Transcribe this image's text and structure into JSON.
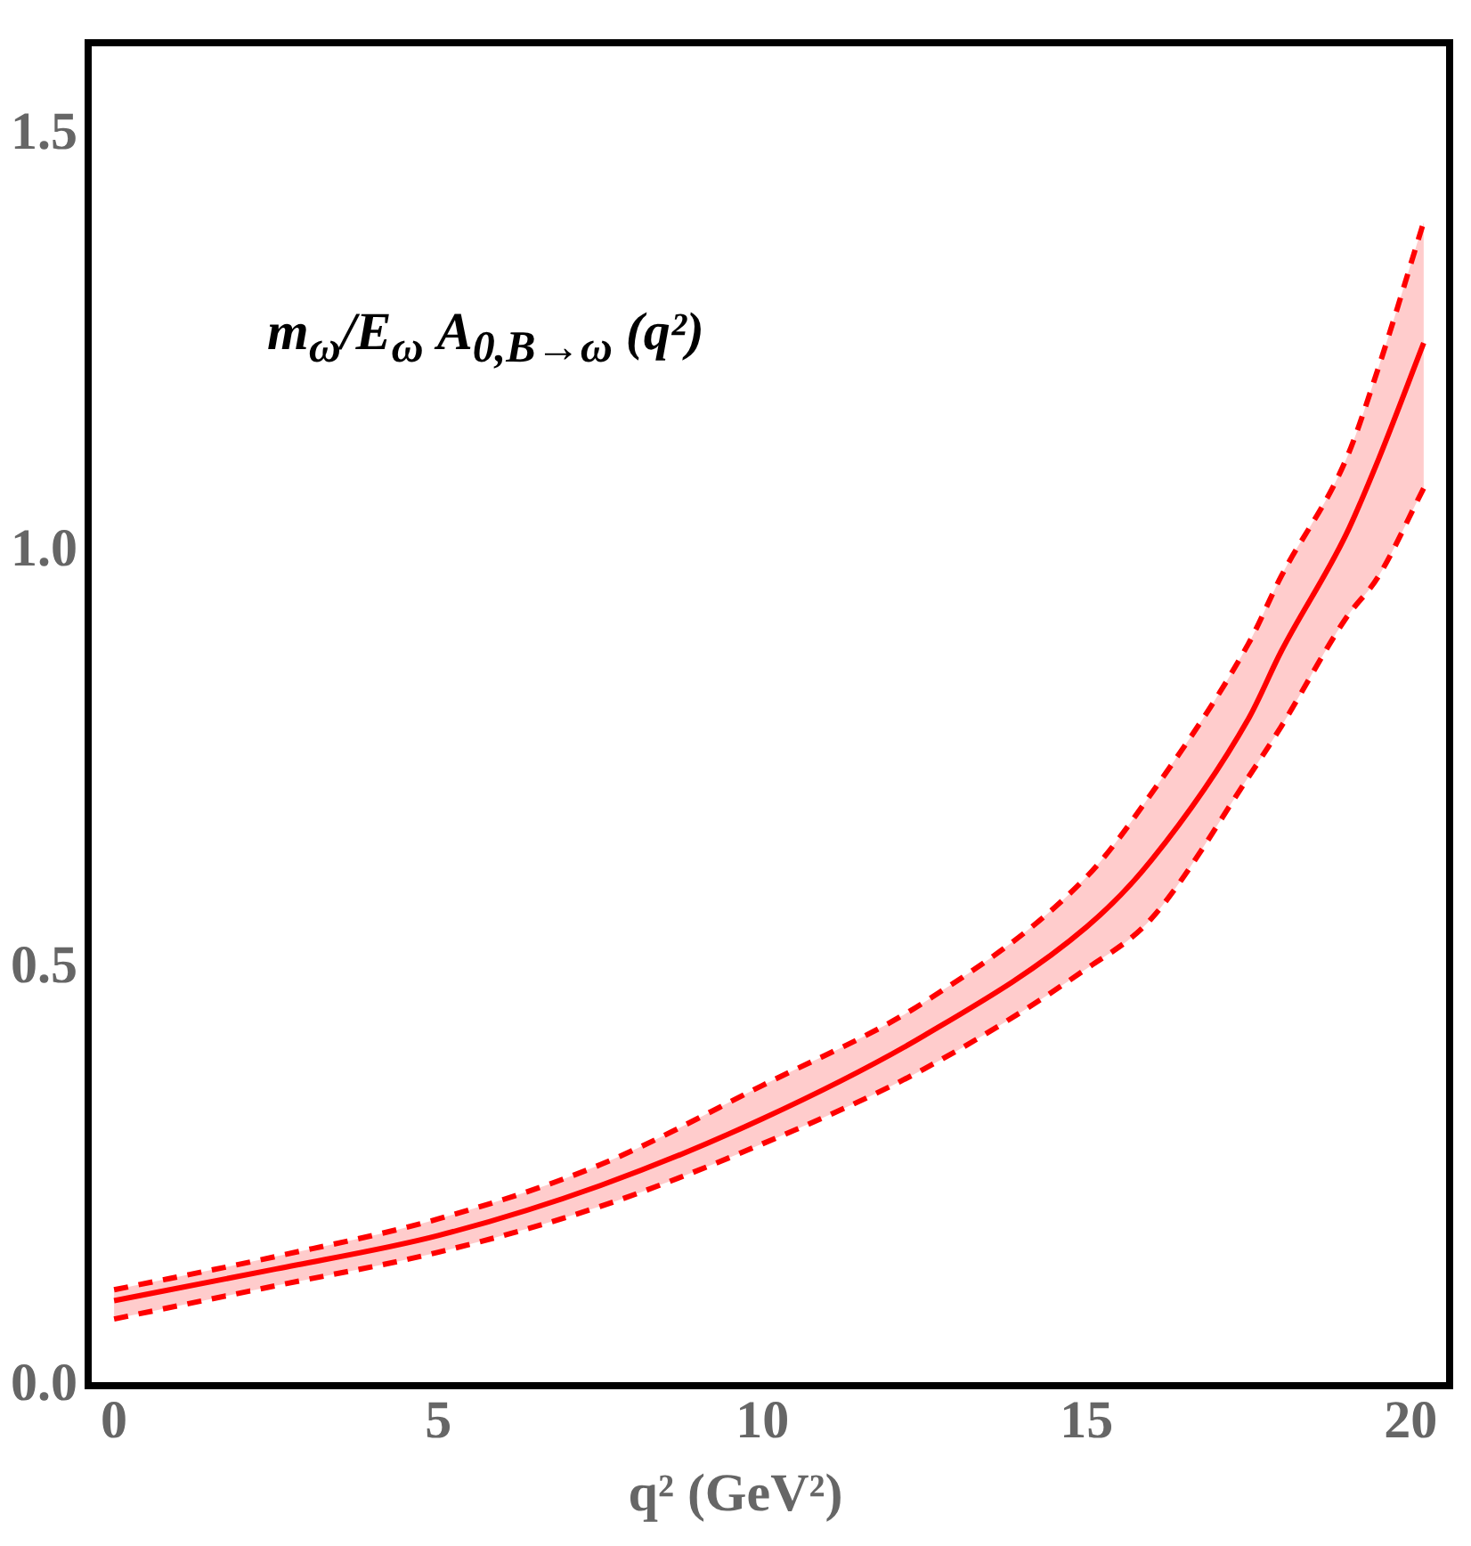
{
  "chart_data": {
    "type": "line",
    "xlabel": "q² (GeV²)",
    "annotations": [
      "m$_{ω}$/E$_{ω}$ A$_{0,B→ω}$ (q²)"
    ],
    "x": [
      0,
      2.5,
      5,
      7.5,
      10,
      12.5,
      15,
      16,
      17.5,
      18,
      19,
      19.5,
      20.2
    ],
    "series": [
      {
        "color": "#ff0000",
        "values": [
          0.102,
          0.14,
          0.18,
          0.24,
          0.32,
          0.42,
          0.55,
          0.63,
          0.8,
          0.88,
          1.02,
          1.11,
          1.25
        ],
        "lower": [
          0.08,
          0.12,
          0.16,
          0.215,
          0.29,
          0.38,
          0.5,
          0.56,
          0.73,
          0.79,
          0.92,
          0.97,
          1.076
        ],
        "upper": [
          0.115,
          0.155,
          0.2,
          0.265,
          0.36,
          0.46,
          0.61,
          0.71,
          0.89,
          0.97,
          1.11,
          1.22,
          1.395
        ]
      },
      {
        "color": "#ff0000",
        "line_style": "dashed",
        "values": [
          0.08,
          0.12,
          0.16,
          0.215,
          0.29,
          0.38,
          0.5,
          0.56,
          0.73,
          0.79,
          0.92,
          0.97,
          1.076
        ]
      },
      {
        "color": "#ff0000",
        "line_style": "dashed",
        "values": [
          0.115,
          0.155,
          0.2,
          0.265,
          0.36,
          0.46,
          0.61,
          0.71,
          0.89,
          0.97,
          1.11,
          1.22,
          1.395
        ]
      }
    ],
    "xlim": [
      -0.4,
      20.6
    ],
    "xticks": [
      0,
      5,
      10,
      15,
      20
    ],
    "ylim": [
      0,
      1.61
    ],
    "yticks": [
      {
        "value": 0,
        "label": "0.0"
      },
      {
        "value": 0.5,
        "label": "0.5"
      },
      {
        "value": 1,
        "label": "1.0"
      },
      {
        "value": 1.5,
        "label": "1.5"
      }
    ],
    "grid": false,
    "legend": false,
    "line_style": "solid",
    "marker": "none"
  }
}
